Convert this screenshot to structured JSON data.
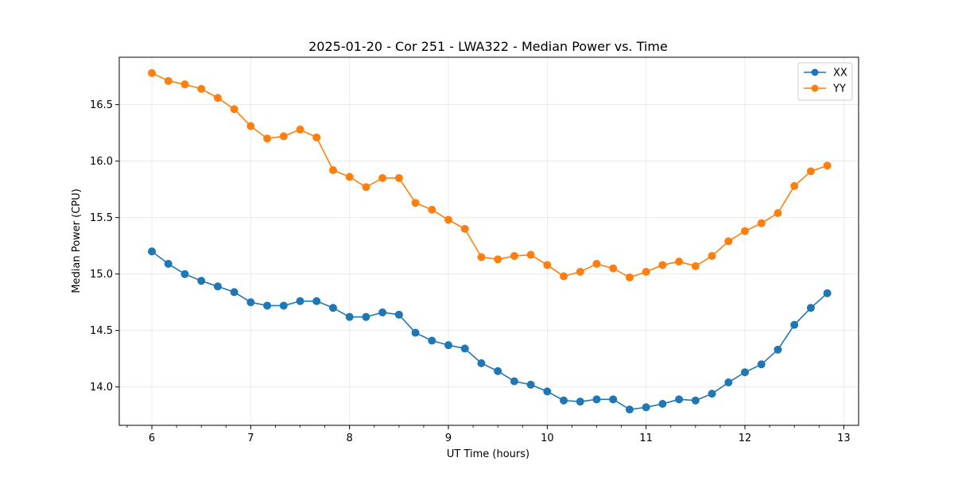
{
  "chart_data": {
    "type": "line",
    "title": "2025-01-20 - Cor 251 - LWA322 - Median Power vs. Time",
    "xlabel": "UT Time (hours)",
    "ylabel": "Median Power (CPU)",
    "xlim": [
      5.67,
      13.15
    ],
    "ylim": [
      13.66,
      16.92
    ],
    "xticks": [
      6,
      7,
      8,
      9,
      10,
      11,
      12,
      13
    ],
    "xticks_minor": [
      5.75,
      6.25,
      6.5,
      6.75,
      7.25,
      7.5,
      7.75,
      8.25,
      8.5,
      8.75,
      9.25,
      9.5,
      9.75,
      10.25,
      10.5,
      10.75,
      11.25,
      11.5,
      11.75,
      12.25,
      12.5,
      12.75
    ],
    "yticks": [
      14.0,
      14.5,
      15.0,
      15.5,
      16.0,
      16.5
    ],
    "grid": true,
    "legend": "upper-right",
    "x": [
      6.0,
      6.1667,
      6.3333,
      6.5,
      6.6667,
      6.8333,
      7.0,
      7.1667,
      7.3333,
      7.5,
      7.6667,
      7.8333,
      8.0,
      8.1667,
      8.3333,
      8.5,
      8.6667,
      8.8333,
      9.0,
      9.1667,
      9.3333,
      9.5,
      9.6667,
      9.8333,
      10.0,
      10.1667,
      10.3333,
      10.5,
      10.6667,
      10.8333,
      11.0,
      11.1667,
      11.3333,
      11.5,
      11.6667,
      11.8333,
      12.0,
      12.1667,
      12.3333,
      12.5,
      12.6667,
      12.8333
    ],
    "series": [
      {
        "name": "XX",
        "color": "#1f77b4",
        "values": [
          15.2,
          15.09,
          15.0,
          14.94,
          14.89,
          14.84,
          14.75,
          14.72,
          14.72,
          14.76,
          14.76,
          14.7,
          14.62,
          14.62,
          14.66,
          14.64,
          14.48,
          14.41,
          14.37,
          14.34,
          14.21,
          14.14,
          14.05,
          14.02,
          13.96,
          13.88,
          13.87,
          13.89,
          13.89,
          13.8,
          13.82,
          13.85,
          13.89,
          13.88,
          13.94,
          14.04,
          14.13,
          14.2,
          14.33,
          14.55,
          14.7,
          14.83
        ]
      },
      {
        "name": "YY",
        "color": "#ff7f0e",
        "values": [
          16.78,
          16.71,
          16.68,
          16.64,
          16.56,
          16.46,
          16.31,
          16.2,
          16.22,
          16.28,
          16.21,
          15.92,
          15.86,
          15.77,
          15.85,
          15.85,
          15.63,
          15.57,
          15.48,
          15.4,
          15.15,
          15.13,
          15.16,
          15.17,
          15.08,
          14.98,
          15.02,
          15.09,
          15.05,
          14.97,
          15.02,
          15.08,
          15.11,
          15.07,
          15.16,
          15.29,
          15.38,
          15.45,
          15.54,
          15.78,
          15.91,
          15.96
        ]
      }
    ]
  }
}
